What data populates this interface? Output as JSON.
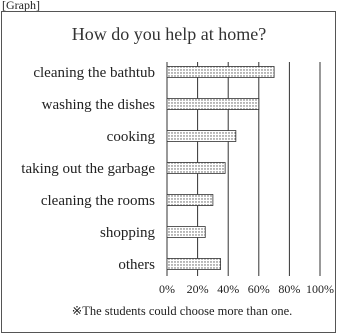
{
  "header": {
    "corner_label": "[Graph]"
  },
  "chart_data": {
    "type": "bar",
    "orientation": "horizontal",
    "title": "How do you help at home?",
    "categories": [
      "cleaning the bathtub",
      "washing the dishes",
      "cooking",
      "taking out the garbage",
      "cleaning the rooms",
      "shopping",
      "others"
    ],
    "values": [
      70,
      60,
      45,
      38,
      30,
      25,
      35
    ],
    "unit": "%",
    "xlim": [
      0,
      100
    ],
    "ticks": [
      "0%",
      "20%",
      "40%",
      "60%",
      "80%",
      "100%"
    ],
    "grid": true,
    "legend": "none",
    "bar_pattern": "dotted",
    "note": "※The students could choose more than one."
  }
}
